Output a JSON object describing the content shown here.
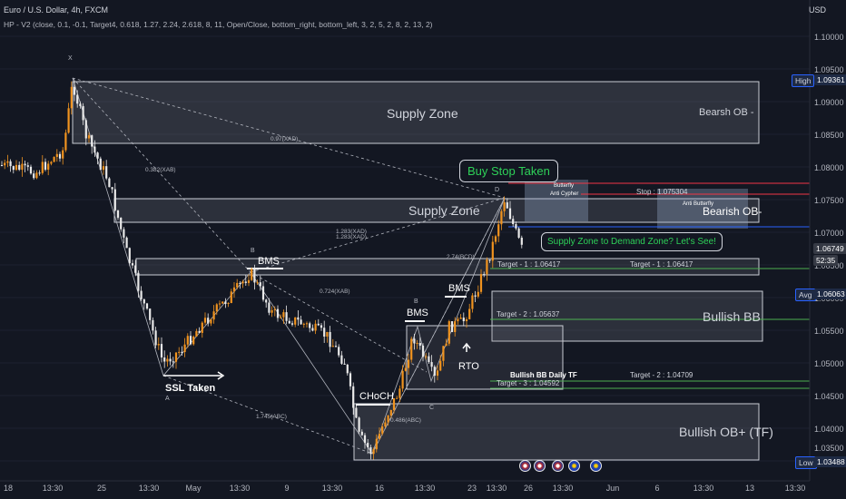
{
  "header": {
    "title": "Euro / U.S. Dollar, 4h, FXCM",
    "indicator": "HP - V2 (close, 0.1, -0.1, Target4, 0.618, 1.27, 2.24, 2.618, 8, 11, Open/Close, bottom_right, bottom_left, 3, 2, 5, 2, 8, 2, 13, 2)"
  },
  "price_axis": {
    "currency": "USD",
    "ticks": [
      "1.10000",
      "1.09500",
      "1.09000",
      "1.08500",
      "1.08000",
      "1.07500",
      "1.07000",
      "1.06500",
      "1.06000",
      "1.05500",
      "1.05000",
      "1.04500",
      "1.04000",
      "1.03500"
    ]
  },
  "price_tags": {
    "high_label": "High",
    "high_value": "1.09361",
    "current_value": "1.06749",
    "countdown": "52:35",
    "avg_label": "Avg",
    "avg_value": "1.06063",
    "low_label": "Low",
    "low_value": "1.03488"
  },
  "time_axis": {
    "ticks": [
      "18",
      "13:30",
      "25",
      "13:30",
      "May",
      "13:30",
      "9",
      "13:30",
      "16",
      "13:30",
      "23",
      "13:30",
      "26",
      "13:30",
      "Jun",
      "6",
      "13:30",
      "13",
      "13:30"
    ]
  },
  "zones": {
    "supply_zone_top": "Supply Zone",
    "bearish_ob_top": "Bearsh OB -",
    "supply_zone_mid": "Supply Zone",
    "bearish_ob_mid": "Bearish OB-",
    "bullish_bb": "Bullish BB",
    "bullish_ob_tf": "Bullish OB+ (TF)",
    "bullish_bb_daily": "Bullish BB Daily TF"
  },
  "annotations": {
    "buy_stop": "Buy Stop Taken",
    "question": "Supply Zone to Demand Zone? Let's See!",
    "bms_1": "BMS",
    "bms_2": "BMS",
    "bms_3": "BMS",
    "ssl": "SSL Taken",
    "choch": "CHoCH",
    "rto": "RTO",
    "stop": "Stop : 1.075304",
    "target1_left": "Target - 1 : 1.06417",
    "target1_right": "Target - 1 : 1.06417",
    "target2_left": "Target - 2 : 1.05637",
    "target2_right": "Target - 2 : 1.04709",
    "target3": "Target - 3 : 1.04592",
    "butterfly": "Butterfly",
    "anti_cypher": "Anti Cypher",
    "anti_butterfly": "Anti Butterfly",
    "pt_x": "X",
    "pt_a": "A",
    "pt_b": "B",
    "pt_c": "C",
    "pt_b2": "B",
    "pt_d": "D",
    "ratio_1": "0.382(XAB)",
    "ratio_2": "0.97(XAD)",
    "ratio_3": "1.283(XAD)",
    "ratio_4": "1.283(XAD)",
    "ratio_5": "0.724(XAB)",
    "ratio_6": "2.74(BCD)",
    "ratio_7": "1.745(ABC)",
    "ratio_8": "0.486(ABC)"
  },
  "colors": {
    "background": "#131722",
    "bull_candle": "#f0931f",
    "bear_candle": "#e9e9e9",
    "zone_border": "#d1d4dc",
    "green_text": "#2ed158",
    "stop_line": "#f23645",
    "target_line": "#4caf50"
  }
}
